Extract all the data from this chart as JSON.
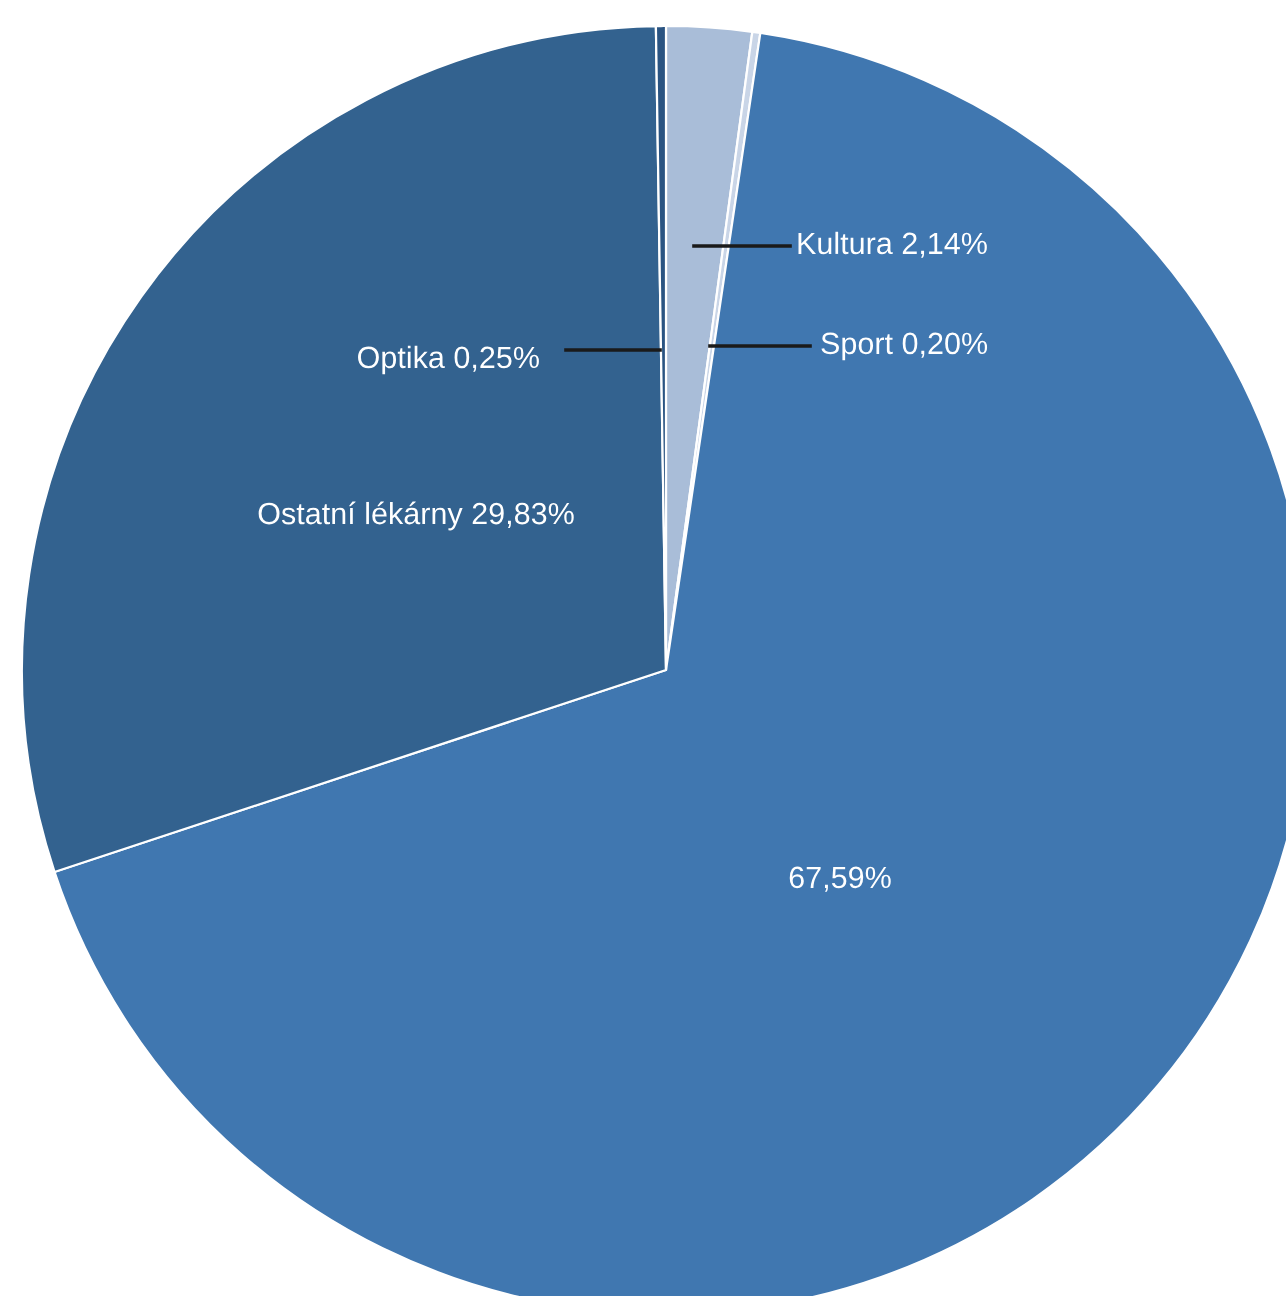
{
  "chart_data": {
    "type": "pie",
    "categories": [
      "Kultura",
      "Sport",
      null,
      "Ostatní lékárny",
      "Optika"
    ],
    "values": [
      2.14,
      0.2,
      67.59,
      29.83,
      0.25
    ],
    "value_labels": [
      "2,14%",
      "0,20%",
      "67,59%",
      "29,83%",
      "0,25%"
    ],
    "colors": [
      "#a9bdd8",
      "#c9d5e7",
      "#4077b0",
      "#33628f",
      "#2a5482"
    ]
  }
}
